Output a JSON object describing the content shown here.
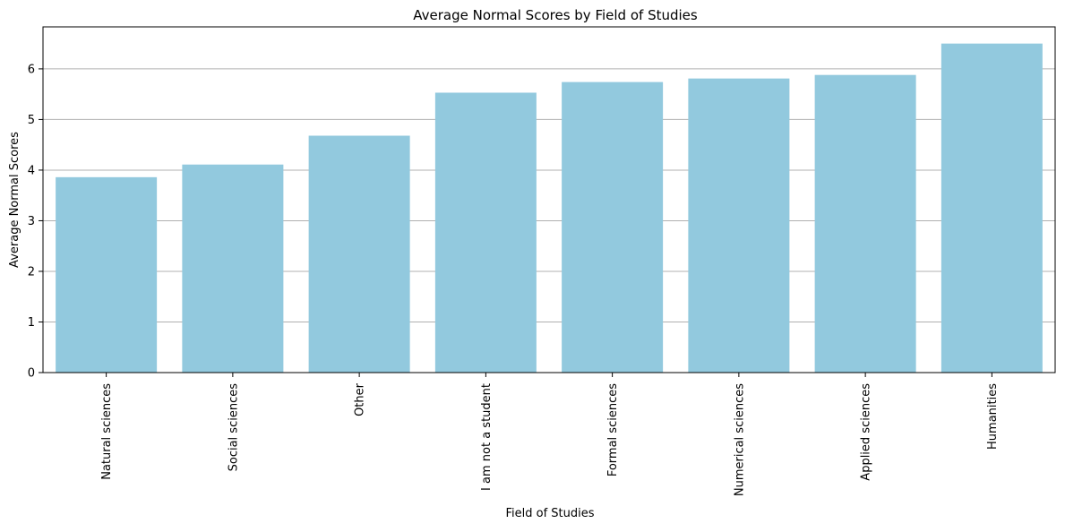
{
  "chart_data": {
    "type": "bar",
    "title": "Average Normal Scores by Field of Studies",
    "xlabel": "Field of Studies",
    "ylabel": "Average Normal Scores",
    "categories": [
      "Natural sciences",
      "Social sciences",
      "Other",
      "I am not a student",
      "Formal sciences",
      "Numerical sciences",
      "Applied sciences",
      "Humanities"
    ],
    "values": [
      3.86,
      4.11,
      4.68,
      5.53,
      5.74,
      5.81,
      5.88,
      6.5
    ],
    "ylim": [
      0,
      6.83
    ],
    "yticks": [
      0,
      1,
      2,
      3,
      4,
      5,
      6
    ],
    "grid": "y",
    "bar_color": "#92c9de",
    "gridline_color": "#b0b0b0"
  }
}
